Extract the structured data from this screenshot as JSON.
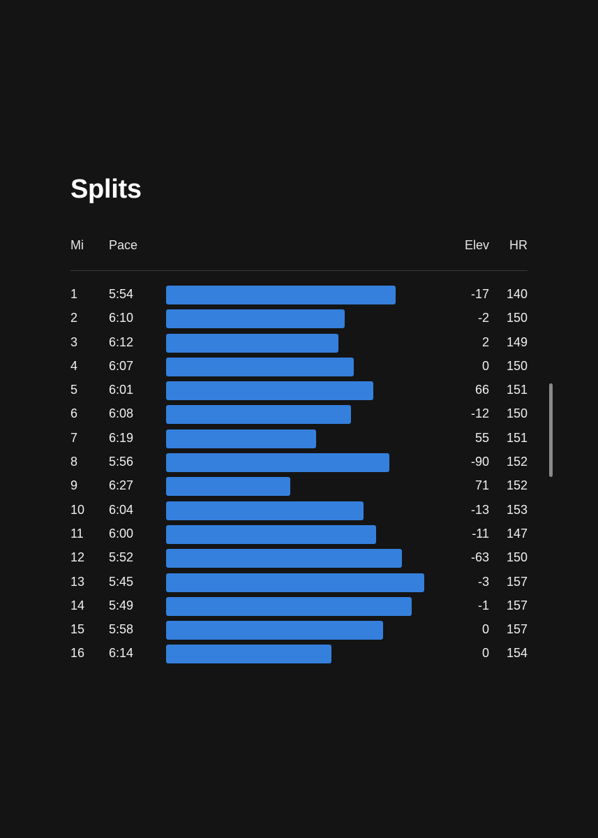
{
  "page": {
    "title": "Splits"
  },
  "table": {
    "headers": {
      "mi": "Mi",
      "pace": "Pace",
      "elev": "Elev",
      "hr": "HR"
    },
    "rows": [
      {
        "mi": "1",
        "pace": "5:54",
        "elev": "-17",
        "hr": "140"
      },
      {
        "mi": "2",
        "pace": "6:10",
        "elev": "-2",
        "hr": "150"
      },
      {
        "mi": "3",
        "pace": "6:12",
        "elev": "2",
        "hr": "149"
      },
      {
        "mi": "4",
        "pace": "6:07",
        "elev": "0",
        "hr": "150"
      },
      {
        "mi": "5",
        "pace": "6:01",
        "elev": "66",
        "hr": "151"
      },
      {
        "mi": "6",
        "pace": "6:08",
        "elev": "-12",
        "hr": "150"
      },
      {
        "mi": "7",
        "pace": "6:19",
        "elev": "55",
        "hr": "151"
      },
      {
        "mi": "8",
        "pace": "5:56",
        "elev": "-90",
        "hr": "152"
      },
      {
        "mi": "9",
        "pace": "6:27",
        "elev": "71",
        "hr": "152"
      },
      {
        "mi": "10",
        "pace": "6:04",
        "elev": "-13",
        "hr": "153"
      },
      {
        "mi": "11",
        "pace": "6:00",
        "elev": "-11",
        "hr": "147"
      },
      {
        "mi": "12",
        "pace": "5:52",
        "elev": "-63",
        "hr": "150"
      },
      {
        "mi": "13",
        "pace": "5:45",
        "elev": "-3",
        "hr": "157"
      },
      {
        "mi": "14",
        "pace": "5:49",
        "elev": "-1",
        "hr": "157"
      },
      {
        "mi": "15",
        "pace": "5:58",
        "elev": "0",
        "hr": "157"
      },
      {
        "mi": "16",
        "pace": "6:14",
        "elev": "0",
        "hr": "154"
      }
    ]
  },
  "colors": {
    "bar": "#3580dd",
    "background": "#141414"
  }
}
